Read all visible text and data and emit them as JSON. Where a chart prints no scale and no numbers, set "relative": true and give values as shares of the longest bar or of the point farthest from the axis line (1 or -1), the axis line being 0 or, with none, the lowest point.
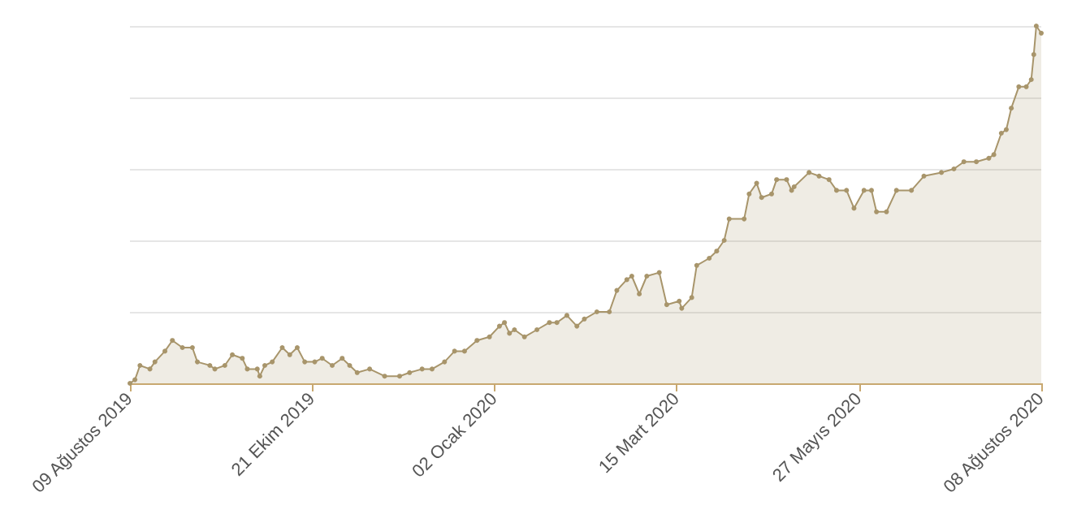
{
  "chart_data": {
    "type": "area",
    "relative": true,
    "color": "#a8956b",
    "grid": "y",
    "marker": "circle",
    "line_style": "solid",
    "xlim": [
      "2019-08-09",
      "2020-08-08"
    ],
    "xticks": [
      {
        "value": "2019-08-09",
        "label": "09 Ağustos 2019"
      },
      {
        "value": "2019-10-21",
        "label": "21 Ekim 2019"
      },
      {
        "value": "2020-01-02",
        "label": "02 Ocak 2020"
      },
      {
        "value": "2020-03-15",
        "label": "15 Mart 2020"
      },
      {
        "value": "2020-05-27",
        "label": "27 Mayıs 2020"
      },
      {
        "value": "2020-08-08",
        "label": "08 Ağustos 2020"
      }
    ],
    "x": [
      "2019-08-09",
      "2019-08-11",
      "2019-08-13",
      "2019-08-17",
      "2019-08-19",
      "2019-08-23",
      "2019-08-26",
      "2019-08-30",
      "2019-09-03",
      "2019-09-05",
      "2019-09-10",
      "2019-09-12",
      "2019-09-16",
      "2019-09-19",
      "2019-09-23",
      "2019-09-25",
      "2019-09-29",
      "2019-09-30",
      "2019-10-02",
      "2019-10-05",
      "2019-10-09",
      "2019-10-12",
      "2019-10-15",
      "2019-10-18",
      "2019-10-22",
      "2019-10-25",
      "2019-10-29",
      "2019-11-02",
      "2019-11-05",
      "2019-11-08",
      "2019-11-13",
      "2019-11-19",
      "2019-11-25",
      "2019-11-29",
      "2019-12-04",
      "2019-12-08",
      "2019-12-13",
      "2019-12-17",
      "2019-12-21",
      "2019-12-26",
      "2019-12-31",
      "2020-01-04",
      "2020-01-06",
      "2020-01-08",
      "2020-01-10",
      "2020-01-14",
      "2020-01-19",
      "2020-01-24",
      "2020-01-27",
      "2020-01-31",
      "2020-02-04",
      "2020-02-07",
      "2020-02-12",
      "2020-02-17",
      "2020-02-20",
      "2020-02-24",
      "2020-02-26",
      "2020-02-29",
      "2020-03-03",
      "2020-03-08",
      "2020-03-11",
      "2020-03-16",
      "2020-03-17",
      "2020-03-21",
      "2020-03-23",
      "2020-03-28",
      "2020-03-31",
      "2020-04-03",
      "2020-04-05",
      "2020-04-11",
      "2020-04-13",
      "2020-04-16",
      "2020-04-18",
      "2020-04-22",
      "2020-04-24",
      "2020-04-28",
      "2020-04-30",
      "2020-05-01",
      "2020-05-07",
      "2020-05-11",
      "2020-05-15",
      "2020-05-18",
      "2020-05-22",
      "2020-05-25",
      "2020-05-29",
      "2020-06-01",
      "2020-06-03",
      "2020-06-07",
      "2020-06-11",
      "2020-06-17",
      "2020-06-22",
      "2020-06-29",
      "2020-07-04",
      "2020-07-08",
      "2020-07-13",
      "2020-07-18",
      "2020-07-20",
      "2020-07-23",
      "2020-07-25",
      "2020-07-27",
      "2020-07-30",
      "2020-08-02",
      "2020-08-04",
      "2020-08-05",
      "2020-08-06",
      "2020-08-08"
    ],
    "values": [
      0.0,
      0.01,
      0.05,
      0.04,
      0.06,
      0.09,
      0.12,
      0.1,
      0.1,
      0.06,
      0.05,
      0.04,
      0.05,
      0.08,
      0.07,
      0.04,
      0.04,
      0.02,
      0.05,
      0.06,
      0.1,
      0.08,
      0.1,
      0.06,
      0.06,
      0.07,
      0.05,
      0.07,
      0.05,
      0.03,
      0.04,
      0.02,
      0.02,
      0.03,
      0.04,
      0.04,
      0.06,
      0.09,
      0.09,
      0.12,
      0.13,
      0.16,
      0.17,
      0.14,
      0.15,
      0.13,
      0.15,
      0.17,
      0.17,
      0.19,
      0.16,
      0.18,
      0.2,
      0.2,
      0.26,
      0.29,
      0.3,
      0.25,
      0.3,
      0.31,
      0.22,
      0.23,
      0.21,
      0.24,
      0.33,
      0.35,
      0.37,
      0.4,
      0.46,
      0.46,
      0.53,
      0.56,
      0.52,
      0.53,
      0.57,
      0.57,
      0.54,
      0.55,
      0.59,
      0.58,
      0.57,
      0.54,
      0.54,
      0.49,
      0.54,
      0.54,
      0.48,
      0.48,
      0.54,
      0.54,
      0.58,
      0.59,
      0.6,
      0.62,
      0.62,
      0.63,
      0.64,
      0.7,
      0.71,
      0.77,
      0.83,
      0.83,
      0.85,
      0.92,
      1.0,
      0.98
    ]
  }
}
